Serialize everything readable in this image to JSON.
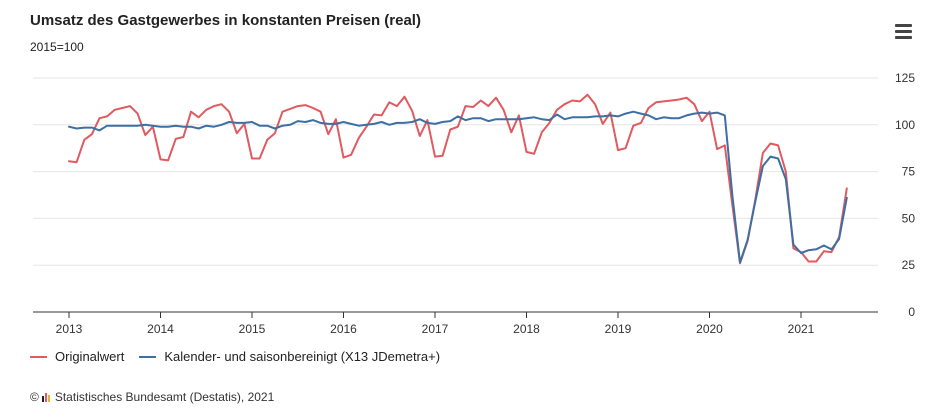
{
  "header": {
    "title": "Umsatz des Gastgewerbes in konstanten Preisen (real)",
    "subtitle": "2015=100"
  },
  "menu_icon": "hamburger-menu-icon",
  "credits": {
    "prefix": "©",
    "text": "Statistisches Bundesamt (Destatis), 2021"
  },
  "chart_data": {
    "type": "line",
    "title": "Umsatz des Gastgewerbes in konstanten Preisen (real)",
    "subtitle": "2015=100",
    "x_start": "2013-01",
    "x_end": "2021-06",
    "x_interval": "monthly",
    "x_ticks": [
      "2013",
      "2014",
      "2015",
      "2016",
      "2017",
      "2018",
      "2019",
      "2020",
      "2021"
    ],
    "y_ticks": [
      0,
      25,
      50,
      75,
      100,
      125
    ],
    "ylim": [
      0,
      125
    ],
    "y_axis_side": "right",
    "grid": true,
    "legend_position": "bottom-left",
    "series": [
      {
        "name": "Originalwert",
        "color": "#e05a5f",
        "values": [
          80.5,
          80.0,
          92.0,
          95.0,
          103.5,
          104.5,
          108.0,
          109.0,
          110.0,
          106.0,
          94.5,
          99.0,
          81.5,
          81.0,
          92.5,
          93.5,
          107.0,
          104.0,
          108.0,
          110.0,
          111.0,
          107.0,
          95.5,
          100.5,
          82.0,
          82.0,
          92.0,
          95.5,
          107.0,
          108.5,
          110.0,
          110.5,
          109.0,
          107.0,
          95.0,
          103.0,
          82.5,
          84.0,
          93.0,
          99.0,
          105.5,
          105.0,
          112.0,
          110.0,
          115.0,
          107.5,
          94.0,
          102.5,
          83.0,
          83.5,
          97.5,
          99.0,
          110.0,
          109.5,
          113.0,
          110.0,
          114.5,
          108.0,
          96.0,
          105.0,
          85.5,
          84.5,
          96.0,
          101.0,
          108.0,
          111.0,
          113.0,
          112.5,
          116.0,
          111.0,
          100.5,
          106.5,
          86.5,
          87.5,
          99.5,
          101.0,
          109.0,
          112.0,
          112.5,
          113.0,
          113.5,
          114.5,
          111.0,
          102.0,
          107.0,
          87.0,
          89.0,
          57.0,
          26.0,
          38.0,
          60.0,
          85.0,
          90.0,
          89.0,
          75.0,
          34.0,
          32.0,
          27.0,
          27.0,
          32.5,
          32.0,
          40.0,
          66.0
        ]
      },
      {
        "name": "Kalender- und saisonbereinigt (X13 JDemetra+)",
        "color": "#3d6fa3",
        "values": [
          99.0,
          98.0,
          98.5,
          98.5,
          97.0,
          99.5,
          99.5,
          99.5,
          99.5,
          99.5,
          100.0,
          99.5,
          99.0,
          99.0,
          99.5,
          99.0,
          99.0,
          98.0,
          99.5,
          99.0,
          100.0,
          101.5,
          101.0,
          101.0,
          101.5,
          99.5,
          99.5,
          98.0,
          99.5,
          100.0,
          102.0,
          101.5,
          102.5,
          101.0,
          100.5,
          100.5,
          101.5,
          100.5,
          99.5,
          100.0,
          100.5,
          101.5,
          100.0,
          101.0,
          101.0,
          101.5,
          103.0,
          101.0,
          100.5,
          101.5,
          102.0,
          104.5,
          102.5,
          103.5,
          103.5,
          102.0,
          103.0,
          103.0,
          103.0,
          103.0,
          103.5,
          104.0,
          103.0,
          102.5,
          105.5,
          103.0,
          104.0,
          104.0,
          104.0,
          104.5,
          104.5,
          105.0,
          104.5,
          106.0,
          107.0,
          106.0,
          105.0,
          103.0,
          104.0,
          103.5,
          103.5,
          105.0,
          106.0,
          106.5,
          106.0,
          106.5,
          105.0,
          62.0,
          26.5,
          38.5,
          59.0,
          78.0,
          83.0,
          82.0,
          71.0,
          36.0,
          31.5,
          33.0,
          33.5,
          35.5,
          33.5,
          39.0,
          61.0
        ]
      }
    ]
  }
}
